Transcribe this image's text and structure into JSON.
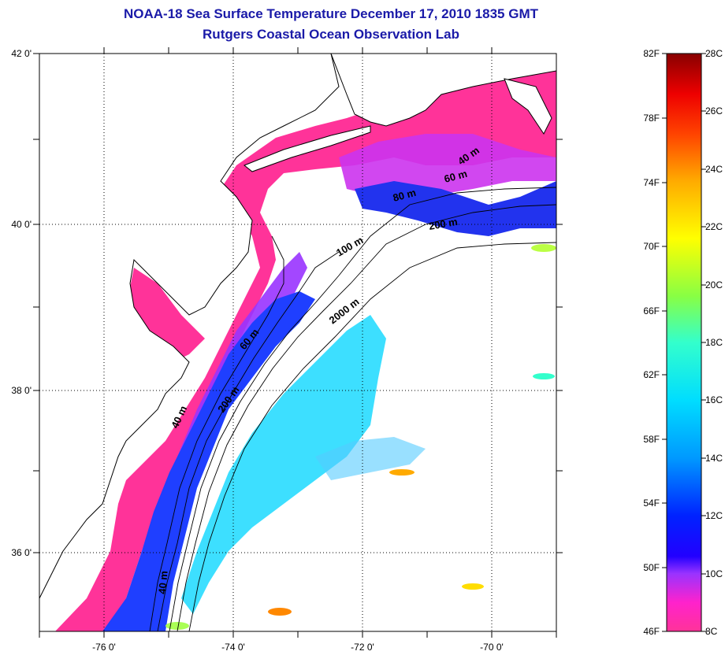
{
  "title": {
    "line1": "NOAA-18 Sea Surface Temperature December 17, 2010 1835 GMT",
    "line2": "Rutgers Coastal Ocean Observation Lab"
  },
  "axes": {
    "longitude_labels": [
      "-76 0'",
      "-74 0'",
      "-72 0'",
      "-70 0'"
    ],
    "latitude_labels": [
      "42 0'",
      "40 0'",
      "38 0'",
      "36 0'"
    ]
  },
  "contour_labels": [
    "40 m",
    "60 m",
    "80 m",
    "200 m",
    "100 m",
    "2000 m",
    "60 m",
    "200 m",
    "40 m",
    "40 m"
  ],
  "colorbar": {
    "fahrenheit": [
      "82F",
      "78F",
      "74F",
      "70F",
      "66F",
      "62F",
      "58F",
      "54F",
      "50F",
      "46F"
    ],
    "celsius": [
      "28C",
      "26C",
      "24C",
      "22C",
      "20C",
      "18C",
      "16C",
      "14C",
      "12C",
      "10C",
      "8C"
    ]
  },
  "colors": {
    "cold_pink": "#ff3399",
    "purple": "#9933ff",
    "blue": "#1f3fff",
    "cyan": "#33ddff",
    "title_blue": "#1a1aa8"
  }
}
